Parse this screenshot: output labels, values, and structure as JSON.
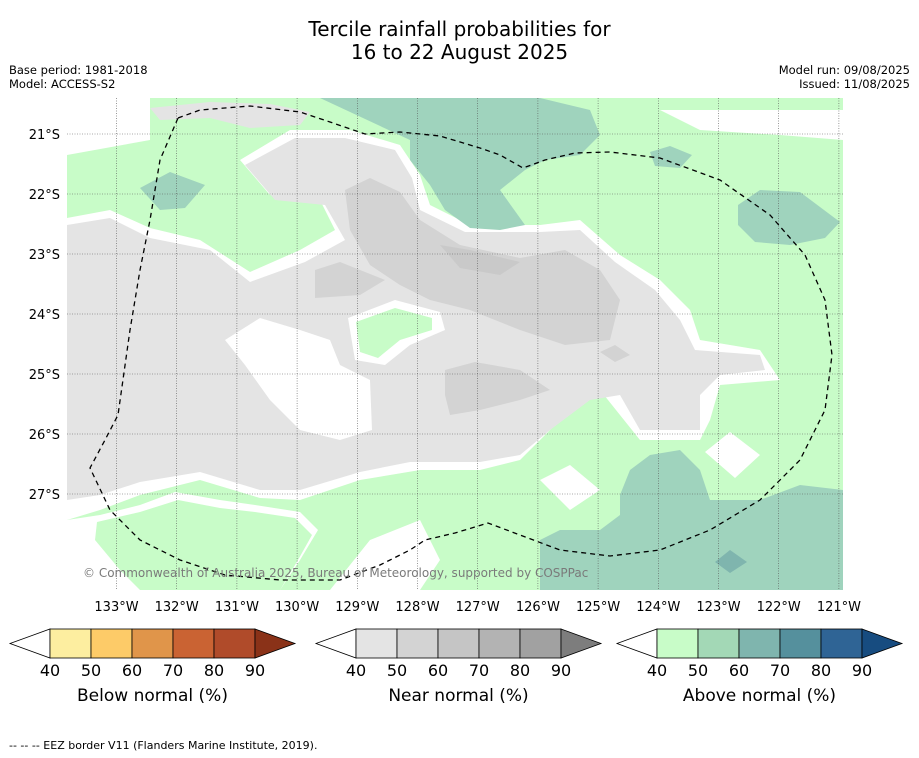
{
  "title": {
    "line1": "Tercile rainfall probabilities for",
    "line2": "16 to 22 August 2025"
  },
  "meta": {
    "base_period": "Base period: 1981-2018",
    "model": "Model: ACCESS-S2",
    "model_run": "Model run: 09/08/2025",
    "issued": "Issued: 11/08/2025"
  },
  "map": {
    "lat_labels": [
      "21°S",
      "22°S",
      "23°S",
      "24°S",
      "25°S",
      "26°S",
      "27°S"
    ],
    "lon_labels": [
      "133°W",
      "132°W",
      "131°W",
      "130°W",
      "129°W",
      "128°W",
      "127°W",
      "126°W",
      "125°W",
      "124°W",
      "123°W",
      "122°W",
      "121°W"
    ],
    "copyright": "© Commonwealth of Australia 2025, Bureau of Meteorology, supported by COSPPac",
    "colors": {
      "near_40": "#e4e4e4",
      "near_50": "#d3d3d3",
      "near_60": "#c5c5c5",
      "above_40": "#c8fcc8",
      "above_50": "#9fd3bd",
      "above_60": "#7eb5b0",
      "eez_border": "#000000"
    }
  },
  "colorbars": [
    {
      "label": "Below normal (%)",
      "ticks": [
        "40",
        "50",
        "60",
        "70",
        "80",
        "90"
      ],
      "colors": [
        "#ffffff",
        "#fdeea0",
        "#fdcb68",
        "#e0954a",
        "#ca6333",
        "#b04b2a",
        "#8a3218"
      ]
    },
    {
      "label": "Near normal (%)",
      "ticks": [
        "40",
        "50",
        "60",
        "70",
        "80",
        "90"
      ],
      "colors": [
        "#ffffff",
        "#e4e4e4",
        "#d3d3d3",
        "#c5c5c5",
        "#b3b3b3",
        "#a1a1a1",
        "#7d7d7d"
      ]
    },
    {
      "label": "Above normal (%)",
      "ticks": [
        "40",
        "50",
        "60",
        "70",
        "80",
        "90"
      ],
      "colors": [
        "#ffffff",
        "#c8fcc8",
        "#a3d8b6",
        "#7fb5ae",
        "#55909d",
        "#2f6495",
        "#174c80"
      ]
    }
  ],
  "footnote": "--  --  -- EEZ border V11 (Flanders Marine Institute, 2019)."
}
